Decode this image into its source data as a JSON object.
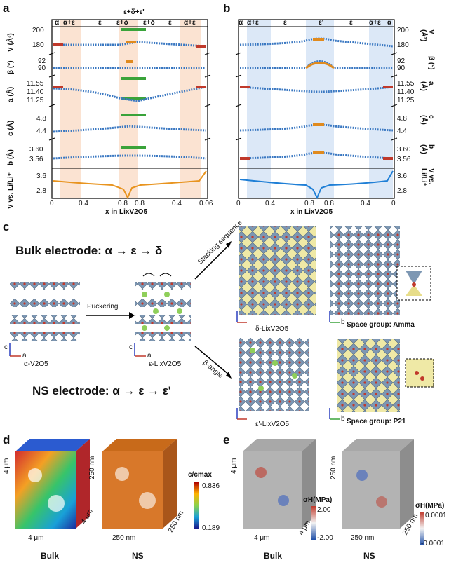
{
  "panels": {
    "a": "a",
    "b": "b",
    "c": "c",
    "d": "d",
    "e": "e"
  },
  "panel_a": {
    "phase_top": "ε+δ+ε'",
    "phases": [
      "α",
      "α+ε",
      "ε",
      "ε+δ",
      "ε+δ",
      "ε",
      "α+ε"
    ],
    "ylabels": [
      "V (Å³)",
      "β (°)",
      "a (Å)",
      "c (Å)",
      "b (Å)",
      "V vs. Li/Li⁺"
    ],
    "ticks": {
      "V": [
        "200",
        "180"
      ],
      "beta": [
        "92",
        "90"
      ],
      "a": [
        "11.55",
        "11.40",
        "11.25"
      ],
      "c": [
        "4.8",
        "4.4"
      ],
      "b": [
        "3.60",
        "3.56"
      ],
      "volt": [
        "3.6",
        "2.8"
      ]
    },
    "xticks": [
      "0",
      "0.4",
      "0.8",
      "0.8",
      "0.4",
      "0.06"
    ],
    "xlabel": "x in LixV2O5"
  },
  "panel_b": {
    "phases": [
      "α",
      "α+ε",
      "ε",
      "ε'",
      "ε",
      "α+ε",
      "α"
    ],
    "ylabels": [
      "V (Å³)",
      "β (°)",
      "a (Å)",
      "c (Å)",
      "b (Å)",
      "V vs. Li/Li⁺"
    ],
    "ticks": {
      "V": [
        "200",
        "180"
      ],
      "beta": [
        "92",
        "90"
      ],
      "a": [
        "11.55",
        "11.40",
        "11.25"
      ],
      "c": [
        "4.8",
        "4.4"
      ],
      "b": [
        "3.60",
        "3.56"
      ],
      "volt": [
        "3.6",
        "2.8"
      ]
    },
    "xticks": [
      "0",
      "0.4",
      "0.8",
      "0.8",
      "0.4",
      "0"
    ],
    "xlabel": "x in LixV2O5"
  },
  "panel_c": {
    "bulk_title": "Bulk electrode: α → ε → δ",
    "ns_title": "NS electrode: α → ε → ε'",
    "arrow_puckering": "Puckering",
    "arrow_stacking": "Stacking sequence",
    "arrow_beta": "β-angle",
    "struct_labels": [
      "α-V2O5",
      "ε-LixV2O5",
      "δ-LixV2O5",
      "ε'-LixV2O5"
    ],
    "space_groups": [
      "Space group: Amma",
      "Space group: P21"
    ],
    "axes": {
      "c": "c",
      "a": "a",
      "b": "b"
    }
  },
  "panel_d": {
    "dims_bulk": [
      "4 μm",
      "4 μm",
      "4 μm"
    ],
    "dims_ns": [
      "250 nm",
      "250 nm",
      "250 nm"
    ],
    "colorbar_title": "c/cmax",
    "colorbar_max": "0.836",
    "colorbar_min": "0.189",
    "captions": [
      "Bulk",
      "NS"
    ]
  },
  "panel_e": {
    "dims_bulk": [
      "4 μm",
      "4 μm",
      "4 μm"
    ],
    "dims_ns": [
      "250 nm",
      "250 nm",
      "250 nm"
    ],
    "cb1_title": "σH(MPa)",
    "cb1_max": "2.00",
    "cb1_min": "-2.00",
    "cb2_title": "σH(MPa)",
    "cb2_max": "0.0001",
    "cb2_min": "-0.0001",
    "captions": [
      "Bulk",
      "NS"
    ]
  },
  "colors": {
    "blue_marker": "#3a78c2",
    "red_marker": "#c0392b",
    "orange_marker": "#e08a1e",
    "green_marker": "#3aa33a",
    "shade_orange": "#fbe3d2",
    "shade_blue": "#dce8f7",
    "volt_orange": "#e8941f",
    "volt_blue": "#1f7fd6",
    "struct_gray": "#7d97b3",
    "struct_yellow": "#e7dd8a",
    "li_green": "#8fcf5a"
  }
}
